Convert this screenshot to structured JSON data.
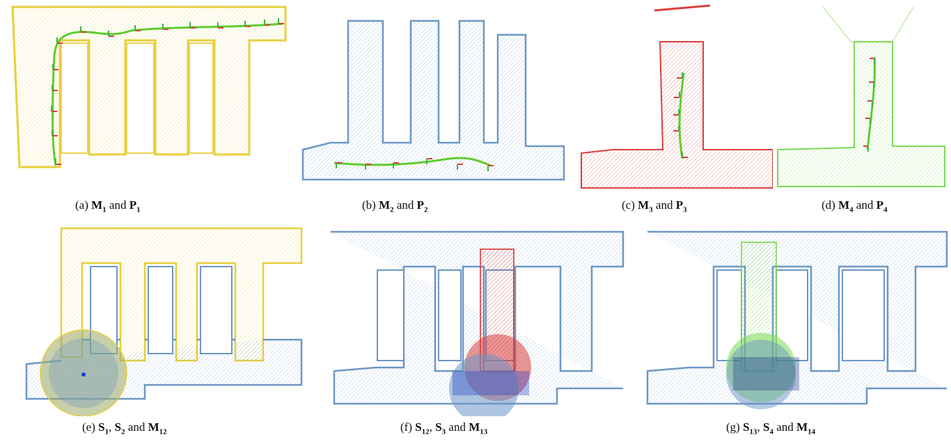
{
  "figure": {
    "captions": [
      {
        "id": "a",
        "label": "(a)",
        "parts": [
          {
            "sym": "M",
            "sub": "1"
          },
          {
            "t": " and "
          },
          {
            "sym": "P",
            "sub": "1"
          }
        ]
      },
      {
        "id": "b",
        "label": "(b)",
        "parts": [
          {
            "sym": "M",
            "sub": "2"
          },
          {
            "t": " and "
          },
          {
            "sym": "P",
            "sub": "2"
          }
        ]
      },
      {
        "id": "c",
        "label": "(c)",
        "parts": [
          {
            "sym": "M",
            "sub": "3"
          },
          {
            "t": " and "
          },
          {
            "sym": "P",
            "sub": "3"
          }
        ]
      },
      {
        "id": "d",
        "label": "(d)",
        "parts": [
          {
            "sym": "M",
            "sub": "4"
          },
          {
            "t": " and "
          },
          {
            "sym": "P",
            "sub": "4"
          }
        ]
      },
      {
        "id": "e",
        "label": "(e)",
        "parts": [
          {
            "sym": "S",
            "sub": "1"
          },
          {
            "t": ", "
          },
          {
            "sym": "S",
            "sub": "2"
          },
          {
            "t": " and "
          },
          {
            "sym": "M",
            "sub": "12",
            "boldsub": true
          }
        ]
      },
      {
        "id": "f",
        "label": "(f)",
        "parts": [
          {
            "sym": "S",
            "sub": "12"
          },
          {
            "t": ", "
          },
          {
            "sym": "S",
            "sub": "3"
          },
          {
            "t": " and "
          },
          {
            "sym": "M",
            "sub": "13"
          }
        ]
      },
      {
        "id": "g",
        "label": "(g)",
        "parts": [
          {
            "sym": "S",
            "sub": "13"
          },
          {
            "t": ", "
          },
          {
            "sym": "S",
            "sub": "4"
          },
          {
            "t": " and "
          },
          {
            "sym": "M",
            "sub": "14"
          }
        ]
      }
    ],
    "colors": {
      "yellow": "#e8cf3c",
      "blue": "#6c97c6",
      "red": "#d9403f",
      "green": "#7ed957",
      "path": "#5fcc2e"
    }
  }
}
